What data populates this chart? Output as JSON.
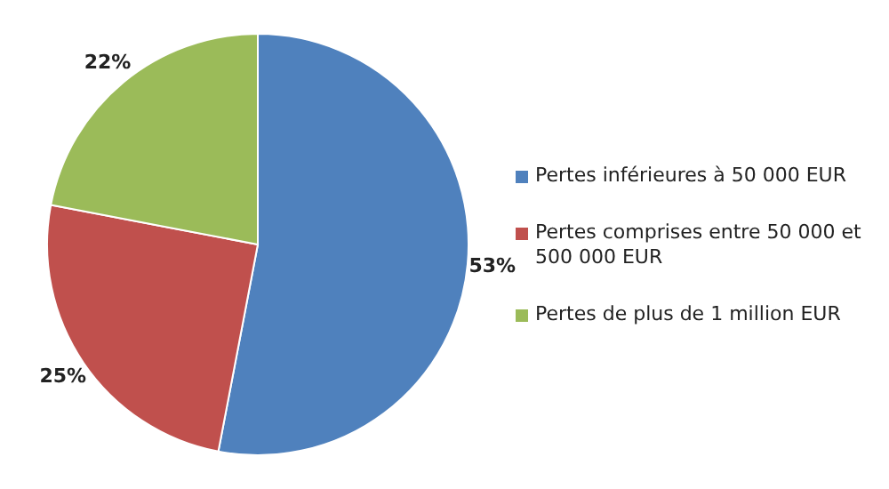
{
  "chart_data": {
    "type": "pie",
    "categories": [
      "Pertes inférieures à 50 000 EUR",
      "Pertes comprises entre 50 000 et 500 000 EUR",
      "Pertes de plus de 1 million EUR"
    ],
    "values": [
      53,
      25,
      22
    ],
    "colors": [
      "#4f81bd",
      "#c0504d",
      "#9bbb59"
    ],
    "value_labels": [
      "53%",
      "25%",
      "22%"
    ],
    "legend": "right"
  }
}
